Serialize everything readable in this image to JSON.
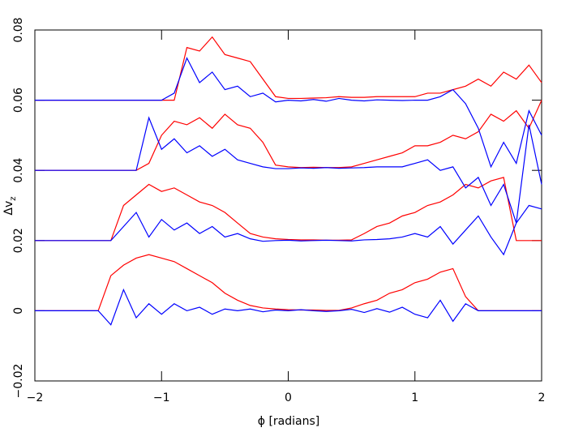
{
  "chart_data": {
    "type": "line",
    "x_label": "ϕ [radians]",
    "y_label": "Δv",
    "y_label_subscript": "z",
    "x": [
      -2,
      -1.9,
      -1.8,
      -1.7,
      -1.6,
      -1.5,
      -1.4,
      -1.3,
      -1.2,
      -1.1,
      -1,
      -0.9,
      -0.8,
      -0.7,
      -0.6,
      -0.5,
      -0.4,
      -0.3,
      -0.2,
      -0.1,
      0,
      0.1,
      0.2,
      0.3,
      0.4,
      0.5,
      0.6,
      0.7,
      0.8,
      0.9,
      1,
      1.1,
      1.2,
      1.3,
      1.4,
      1.5,
      1.6,
      1.7,
      1.8,
      1.9,
      2
    ],
    "series": [
      {
        "color": "#ff0000",
        "values": [
          0,
          0,
          0,
          0,
          0,
          0,
          0.01,
          0.013,
          0.015,
          0.016,
          0.015,
          0.014,
          0.012,
          0.01,
          0.008,
          0.005,
          0.003,
          0.0015,
          0.0008,
          0.0005,
          0.0003,
          0.0002,
          0.0002,
          0.0001,
          0.0001,
          0.0008,
          0.002,
          0.003,
          0.005,
          0.006,
          0.008,
          0.009,
          0.011,
          0.012,
          0.004,
          0,
          0,
          0,
          0,
          0,
          0
        ]
      },
      {
        "color": "#0000ff",
        "values": [
          0,
          0,
          0,
          0,
          0,
          0,
          -0.004,
          0.006,
          -0.002,
          0.002,
          -0.001,
          0.002,
          0,
          0.001,
          -0.001,
          0.0005,
          0,
          0.0005,
          -0.0003,
          0.0002,
          0,
          0.0003,
          0,
          -0.0002,
          0,
          0.0004,
          -0.0005,
          0.0006,
          -0.0004,
          0.001,
          -0.001,
          -0.002,
          0.003,
          -0.003,
          0.002,
          0,
          0,
          0,
          0,
          0,
          0
        ]
      },
      {
        "color": "#ff0000",
        "values": [
          0.02,
          0.02,
          0.02,
          0.02,
          0.02,
          0.02,
          0.02,
          0.03,
          0.033,
          0.036,
          0.034,
          0.035,
          0.033,
          0.031,
          0.03,
          0.028,
          0.025,
          0.022,
          0.021,
          0.0205,
          0.0203,
          0.0202,
          0.0202,
          0.0201,
          0.0201,
          0.0202,
          0.022,
          0.024,
          0.025,
          0.027,
          0.028,
          0.03,
          0.031,
          0.033,
          0.036,
          0.035,
          0.037,
          0.038,
          0.02,
          0.02,
          0.02
        ]
      },
      {
        "color": "#0000ff",
        "values": [
          0.02,
          0.02,
          0.02,
          0.02,
          0.02,
          0.02,
          0.02,
          0.024,
          0.028,
          0.021,
          0.026,
          0.023,
          0.025,
          0.022,
          0.024,
          0.021,
          0.022,
          0.0205,
          0.0198,
          0.02,
          0.0201,
          0.0199,
          0.02,
          0.0201,
          0.02,
          0.0199,
          0.0202,
          0.0203,
          0.0205,
          0.021,
          0.022,
          0.021,
          0.024,
          0.019,
          0.023,
          0.027,
          0.021,
          0.016,
          0.025,
          0.03,
          0.029
        ]
      },
      {
        "color": "#ff0000",
        "values": [
          0.04,
          0.04,
          0.04,
          0.04,
          0.04,
          0.04,
          0.04,
          0.04,
          0.04,
          0.042,
          0.05,
          0.054,
          0.053,
          0.055,
          0.052,
          0.056,
          0.053,
          0.052,
          0.048,
          0.0415,
          0.041,
          0.0408,
          0.0409,
          0.0408,
          0.0408,
          0.041,
          0.042,
          0.043,
          0.044,
          0.045,
          0.047,
          0.047,
          0.048,
          0.05,
          0.049,
          0.051,
          0.056,
          0.054,
          0.057,
          0.052,
          0.06
        ]
      },
      {
        "color": "#0000ff",
        "values": [
          0.04,
          0.04,
          0.04,
          0.04,
          0.04,
          0.04,
          0.04,
          0.04,
          0.04,
          0.055,
          0.046,
          0.049,
          0.045,
          0.047,
          0.044,
          0.046,
          0.043,
          0.042,
          0.041,
          0.0405,
          0.0405,
          0.0407,
          0.0406,
          0.0408,
          0.0406,
          0.0407,
          0.0408,
          0.041,
          0.041,
          0.041,
          0.042,
          0.043,
          0.04,
          0.041,
          0.035,
          0.038,
          0.03,
          0.036,
          0.025,
          0.053,
          0.036
        ]
      },
      {
        "color": "#ff0000",
        "values": [
          0.06,
          0.06,
          0.06,
          0.06,
          0.06,
          0.06,
          0.06,
          0.06,
          0.06,
          0.06,
          0.06,
          0.06,
          0.075,
          0.074,
          0.078,
          0.073,
          0.072,
          0.071,
          0.066,
          0.061,
          0.0605,
          0.0605,
          0.0606,
          0.0607,
          0.061,
          0.0608,
          0.0608,
          0.061,
          0.061,
          0.061,
          0.061,
          0.062,
          0.062,
          0.063,
          0.064,
          0.066,
          0.064,
          0.068,
          0.066,
          0.07,
          0.065
        ]
      },
      {
        "color": "#0000ff",
        "values": [
          0.06,
          0.06,
          0.06,
          0.06,
          0.06,
          0.06,
          0.06,
          0.06,
          0.06,
          0.06,
          0.06,
          0.062,
          0.072,
          0.065,
          0.068,
          0.063,
          0.064,
          0.061,
          0.062,
          0.0595,
          0.06,
          0.0598,
          0.0602,
          0.0597,
          0.0605,
          0.06,
          0.0598,
          0.0601,
          0.06,
          0.0599,
          0.06,
          0.06,
          0.061,
          0.063,
          0.059,
          0.052,
          0.041,
          0.048,
          0.042,
          0.057,
          0.05
        ]
      }
    ],
    "xlim": [
      -2,
      2
    ],
    "xticks": [
      {
        "value": -2,
        "label": "−2"
      },
      {
        "value": -1,
        "label": "−1"
      },
      0,
      1,
      2
    ],
    "ylim": [
      -0.02,
      0.08
    ],
    "yticks": [
      {
        "value": -0.02,
        "label": "−0.02"
      },
      0,
      0.02,
      0.04,
      0.06,
      0.08
    ]
  }
}
